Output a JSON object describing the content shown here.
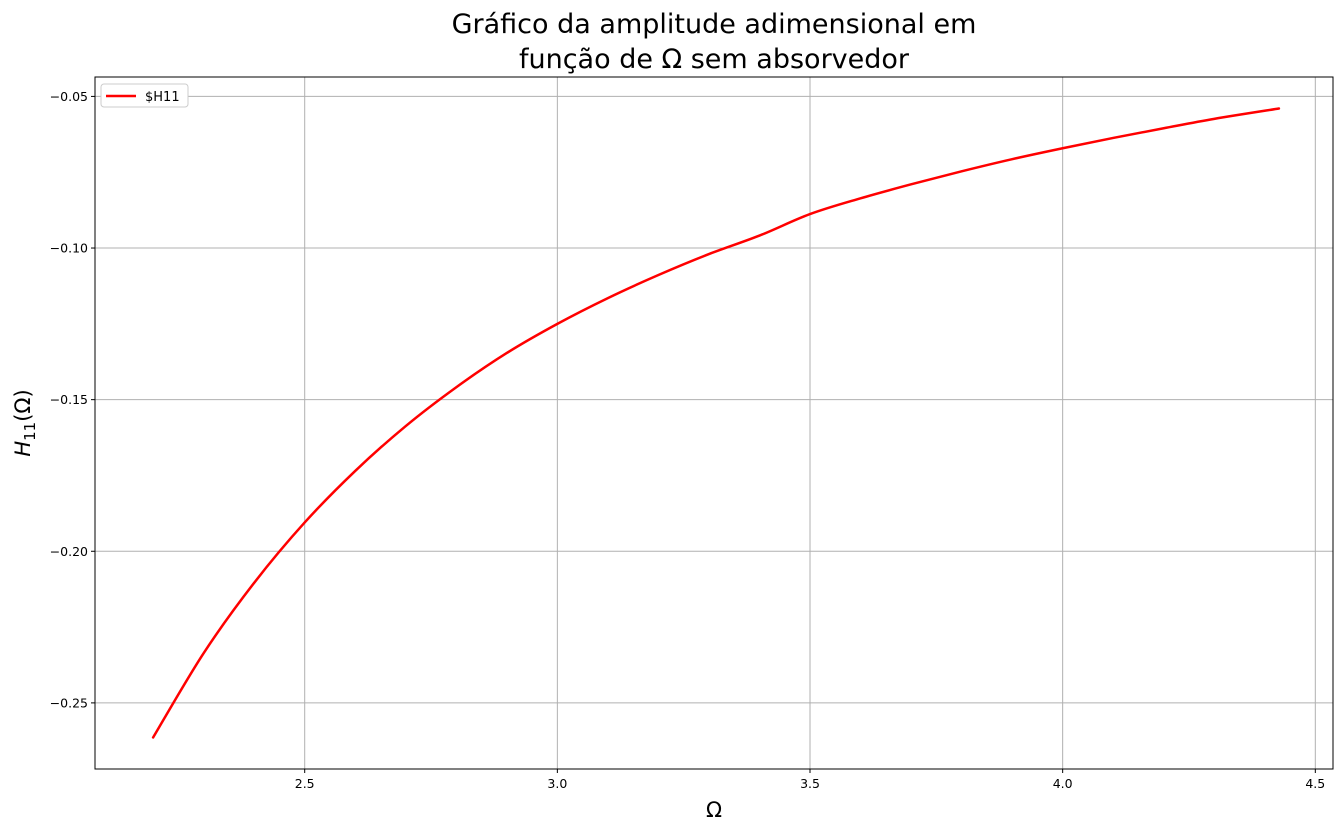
{
  "chart_data": {
    "type": "line",
    "title_lines": [
      "Gráfico da amplitude adimensional em",
      "função de Ω sem absorvedor"
    ],
    "xlabel": "Ω",
    "ylabel_main": "H",
    "ylabel_sub": "11",
    "ylabel_tail": "(Ω)",
    "xlim": [
      2.085,
      4.535
    ],
    "ylim": [
      -0.2718,
      -0.0436
    ],
    "xticks": [
      2.5,
      3.0,
      3.5,
      4.0,
      4.5
    ],
    "xtick_labels": [
      "2.5",
      "3.0",
      "3.5",
      "4.0",
      "4.5"
    ],
    "yticks": [
      -0.25,
      -0.2,
      -0.15,
      -0.1,
      -0.05
    ],
    "ytick_labels": [
      "−0.25",
      "−0.20",
      "−0.15",
      "−0.10",
      "−0.05"
    ],
    "grid": true,
    "legend_position": "upper-left",
    "series": [
      {
        "name": "$H11",
        "color": "#ff0000",
        "x": [
          2.2,
          2.3,
          2.4,
          2.5,
          2.6,
          2.7,
          2.8,
          2.9,
          3.0,
          3.1,
          3.2,
          3.3,
          3.4,
          3.5,
          3.6,
          3.7,
          3.8,
          3.9,
          4.0,
          4.1,
          4.2,
          4.3,
          4.428
        ],
        "y": [
          -0.2614,
          -0.2336,
          -0.2104,
          -0.1905,
          -0.1735,
          -0.1587,
          -0.1459,
          -0.1346,
          -0.125,
          -0.1165,
          -0.1089,
          -0.102,
          -0.0959,
          -0.0888,
          -0.0836,
          -0.079,
          -0.0747,
          -0.0707,
          -0.0671,
          -0.0637,
          -0.0605,
          -0.0574,
          -0.054
        ]
      }
    ]
  }
}
